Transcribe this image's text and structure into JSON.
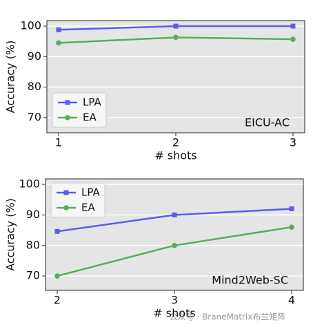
{
  "chart_data": [
    {
      "type": "line",
      "xlabel": "# shots",
      "ylabel": "Accuracy (%)",
      "annotation": "EICU-AC",
      "x": [
        1,
        2,
        3
      ],
      "xlim": [
        0.9,
        3.1
      ],
      "xticks": [
        1,
        2,
        3
      ],
      "ylim": [
        65,
        101.8
      ],
      "yticks": [
        70,
        80,
        90,
        100
      ],
      "grid": true,
      "legend": "lower left",
      "series": [
        {
          "name": "LPA",
          "color": "#5b5bef",
          "marker": "square",
          "values": [
            98.8,
            100,
            100
          ]
        },
        {
          "name": "EA",
          "color": "#5aac5a",
          "marker": "circle",
          "values": [
            94.5,
            96.3,
            95.7
          ]
        }
      ]
    },
    {
      "type": "line",
      "xlabel": "# shots",
      "ylabel": "Accuracy (%)",
      "annotation": "Mind2Web-SC",
      "x": [
        2,
        3,
        4
      ],
      "xlim": [
        1.9,
        4.1
      ],
      "xticks": [
        2,
        3,
        4
      ],
      "ylim": [
        65.3,
        101.8
      ],
      "yticks": [
        70,
        80,
        90,
        100
      ],
      "grid": true,
      "legend": "upper left",
      "series": [
        {
          "name": "LPA",
          "color": "#5b5bef",
          "marker": "square",
          "values": [
            84.6,
            90,
            92
          ]
        },
        {
          "name": "EA",
          "color": "#5aac5a",
          "marker": "circle",
          "values": [
            70,
            80,
            86
          ]
        }
      ]
    }
  ],
  "watermark": "公众号 · BraneMatrix布兰矩阵"
}
